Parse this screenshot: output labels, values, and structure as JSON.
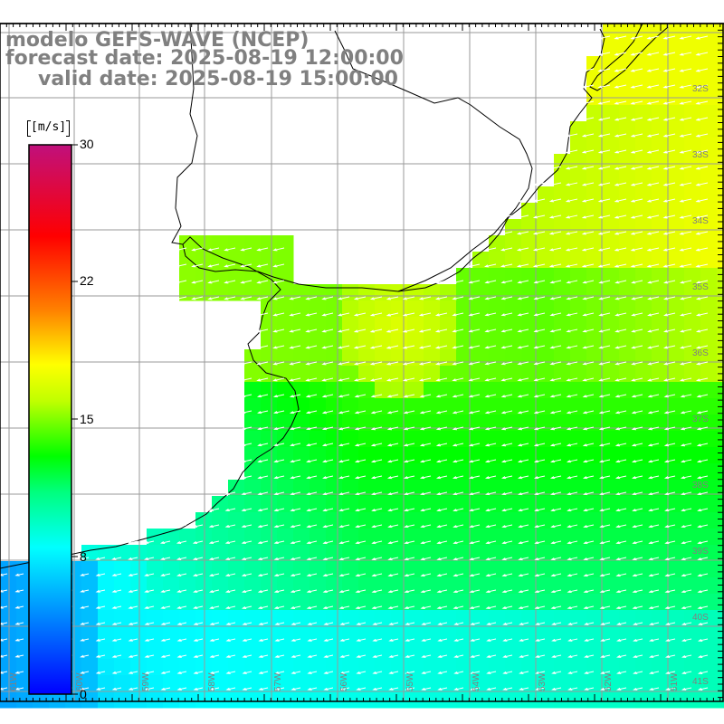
{
  "title": {
    "line1": "modelo GEFS-WAVE (NCEP)",
    "line2": "forecast date: 2025-08-19 12:00:00",
    "line3": "valid date: 2025-08-19 15:00:00"
  },
  "colorbar": {
    "unit": "[m/s]",
    "ticks": [
      "30",
      "22",
      "15",
      "8",
      "0"
    ],
    "stops": [
      {
        "v": 0,
        "color": "#0000ff"
      },
      {
        "v": 5,
        "color": "#00a0ff"
      },
      {
        "v": 8,
        "color": "#00ffff"
      },
      {
        "v": 11,
        "color": "#00ff80"
      },
      {
        "v": 13,
        "color": "#00ff00"
      },
      {
        "v": 16,
        "color": "#c0ff00"
      },
      {
        "v": 18,
        "color": "#ffff00"
      },
      {
        "v": 21,
        "color": "#ff8000"
      },
      {
        "v": 25,
        "color": "#ff0000"
      },
      {
        "v": 30,
        "color": "#c0107c"
      }
    ]
  },
  "map": {
    "lat_labels": [
      "32S",
      "33S",
      "34S",
      "35S",
      "36S",
      "37S",
      "38S",
      "39S",
      "40S",
      "41S"
    ],
    "lon_labels": [
      "61W",
      "60W",
      "59W",
      "58W",
      "57W",
      "56W",
      "55W",
      "54W",
      "53W",
      "52W",
      "51W"
    ],
    "wind_direction": "from northeast"
  }
}
